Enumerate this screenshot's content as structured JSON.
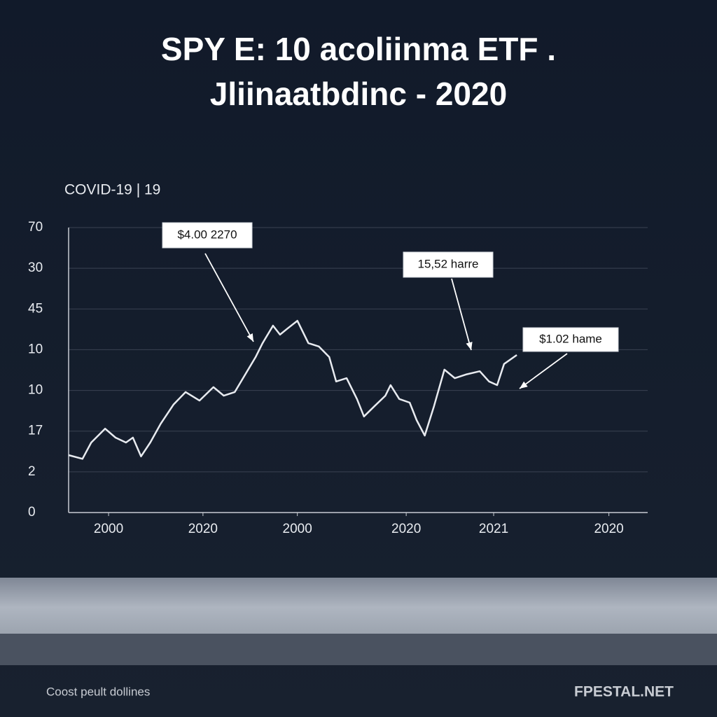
{
  "title_lines": [
    "SPY E: 10 acoliinma ETF .",
    "Jliinaatbdinc - 2020"
  ],
  "subtitle": "COVID-19  |   19",
  "footer": "Coost peult dollines",
  "brand": "FPESTAL.NET",
  "chart_data": {
    "type": "line",
    "color": "#e8ebf0",
    "grid": true,
    "annotations": [
      "$4.00 2270",
      "15,52 harre",
      "$1.02 hame"
    ],
    "x": [
      0,
      2.4,
      3.9,
      6.3,
      8.1,
      9.9,
      11.1,
      12.5,
      14.1,
      15.9,
      18.1,
      20.2,
      22.6,
      25.0,
      26.8,
      28.7,
      30.5,
      32.3,
      33.5,
      35.3,
      36.5,
      37.7,
      39.5,
      41.4,
      43.2,
      45.0,
      46.2,
      48.0,
      49.8,
      51.0,
      52.8,
      54.7,
      55.6,
      57.1,
      58.9,
      60.1,
      61.5,
      63.1,
      64.9,
      66.7,
      68.6,
      71.0,
      72.6,
      74.0,
      75.2,
      77.4
    ],
    "values": [
      1.41,
      1.32,
      1.72,
      2.06,
      1.84,
      1.72,
      1.84,
      1.38,
      1.72,
      2.18,
      2.65,
      2.96,
      2.75,
      3.08,
      2.87,
      2.96,
      3.39,
      3.82,
      4.16,
      4.59,
      4.37,
      4.51,
      4.71,
      4.16,
      4.08,
      3.82,
      3.22,
      3.3,
      2.79,
      2.36,
      2.61,
      2.87,
      3.13,
      2.79,
      2.7,
      2.27,
      1.89,
      2.61,
      3.51,
      3.3,
      3.39,
      3.47,
      3.22,
      3.13,
      3.65,
      3.87
    ],
    "xlim": [
      0,
      100
    ],
    "xticks": [
      {
        "value": 6.9,
        "label": "2000"
      },
      {
        "value": 23.2,
        "label": "2020"
      },
      {
        "value": 39.5,
        "label": "2000"
      },
      {
        "value": 58.3,
        "label": "2020"
      },
      {
        "value": 73.4,
        "label": "2021"
      },
      {
        "value": 93.3,
        "label": "2020"
      }
    ],
    "ylim": [
      0,
      7
    ],
    "yticks": [
      0,
      {
        "value": 1,
        "label": "2"
      },
      {
        "value": 2,
        "label": "17"
      },
      {
        "value": 3,
        "label": "10"
      },
      {
        "value": 4,
        "label": "10"
      },
      {
        "value": 5,
        "label": "45"
      },
      {
        "value": 6,
        "label": "30"
      },
      {
        "value": 7,
        "label": "70"
      }
    ]
  }
}
